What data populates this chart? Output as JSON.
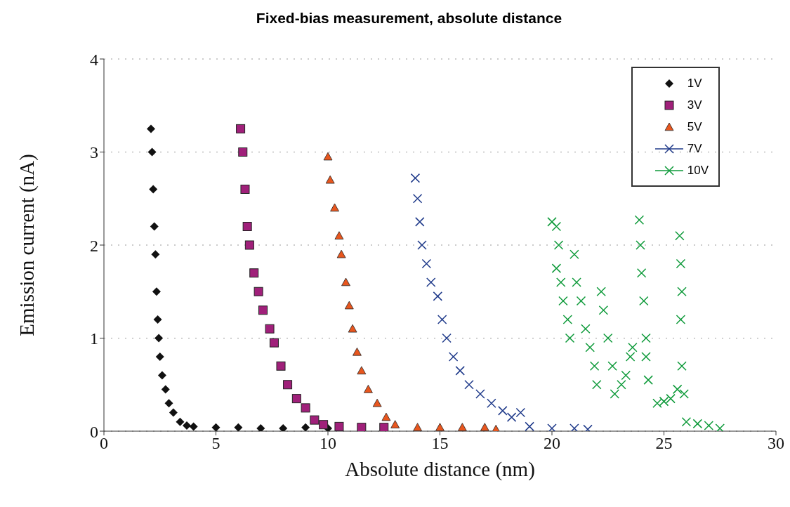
{
  "chart_data": {
    "type": "scatter",
    "title": "Fixed-bias measurement, absolute distance",
    "xlabel": "Absolute distance (nm)",
    "ylabel": "Emission current (nA)",
    "xlim": [
      0,
      30
    ],
    "xticks": [
      0,
      5,
      10,
      15,
      20,
      25,
      30
    ],
    "ylim": [
      0,
      4
    ],
    "yticks": [
      0,
      1,
      2,
      3,
      4
    ],
    "grid": "y",
    "legend": "top right",
    "series": [
      {
        "name": "1V",
        "color": "#111111",
        "marker": "diamond",
        "x": [
          2.1,
          2.15,
          2.2,
          2.25,
          2.3,
          2.35,
          2.4,
          2.45,
          2.5,
          2.6,
          2.75,
          2.9,
          3.1,
          3.4,
          3.7,
          4,
          5,
          6,
          7,
          8,
          9,
          10
        ],
        "values": [
          3.25,
          3.0,
          2.6,
          2.2,
          1.9,
          1.5,
          1.2,
          1.0,
          0.8,
          0.6,
          0.45,
          0.3,
          0.2,
          0.1,
          0.06,
          0.05,
          0.04,
          0.04,
          0.03,
          0.03,
          0.04,
          0.03
        ]
      },
      {
        "name": "3V",
        "color": "#a0207a",
        "marker": "square",
        "x": [
          6.1,
          6.2,
          6.3,
          6.4,
          6.5,
          6.7,
          6.9,
          7.1,
          7.4,
          7.6,
          7.9,
          8.2,
          8.6,
          9.0,
          9.4,
          9.8,
          10.5,
          11.5,
          12.5
        ],
        "values": [
          3.25,
          3.0,
          2.6,
          2.2,
          2.0,
          1.7,
          1.5,
          1.3,
          1.1,
          0.95,
          0.7,
          0.5,
          0.35,
          0.25,
          0.12,
          0.07,
          0.05,
          0.04,
          0.04
        ]
      },
      {
        "name": "5V",
        "color": "#e8561e",
        "marker": "triangle",
        "x": [
          10.0,
          10.1,
          10.3,
          10.5,
          10.6,
          10.8,
          10.95,
          11.1,
          11.3,
          11.5,
          11.8,
          12.2,
          12.6,
          13,
          14,
          15,
          16,
          17,
          17.5
        ],
        "values": [
          2.95,
          2.7,
          2.4,
          2.1,
          1.9,
          1.6,
          1.35,
          1.1,
          0.85,
          0.65,
          0.45,
          0.3,
          0.15,
          0.07,
          0.04,
          0.04,
          0.04,
          0.04,
          0.02
        ]
      },
      {
        "name": "7V",
        "color": "#1f3a8a",
        "marker": "cross",
        "x": [
          13.9,
          14.0,
          14.1,
          14.2,
          14.4,
          14.6,
          14.9,
          15.1,
          15.3,
          15.6,
          15.9,
          16.3,
          16.8,
          17.3,
          17.8,
          18.2,
          18.6,
          19.0,
          20,
          21,
          21.6
        ],
        "values": [
          2.72,
          2.5,
          2.25,
          2.0,
          1.8,
          1.6,
          1.45,
          1.2,
          1.0,
          0.8,
          0.65,
          0.5,
          0.4,
          0.3,
          0.22,
          0.15,
          0.2,
          0.05,
          0.03,
          0.03,
          0.02
        ]
      },
      {
        "name": "10V",
        "color": "#0e9a3a",
        "marker": "cross",
        "x": [
          20.0,
          20.2,
          20.3,
          20.2,
          20.4,
          20.5,
          20.7,
          20.8,
          21.0,
          21.1,
          21.3,
          21.5,
          21.7,
          21.9,
          22.0,
          22.2,
          22.3,
          22.5,
          22.7,
          22.8,
          23.1,
          23.3,
          23.5,
          23.6,
          23.9,
          23.95,
          24.0,
          24.1,
          24.2,
          24.2,
          24.3,
          24.7,
          25.0,
          25.3,
          25.6,
          25.7,
          25.75,
          25.8,
          25.75,
          25.8,
          25.9,
          26.0,
          26.5,
          27.0,
          27.5
        ],
        "values": [
          2.25,
          2.2,
          2.0,
          1.75,
          1.6,
          1.4,
          1.2,
          1.0,
          1.9,
          1.6,
          1.4,
          1.1,
          0.9,
          0.7,
          0.5,
          1.5,
          1.3,
          1.0,
          0.7,
          0.4,
          0.5,
          0.6,
          0.8,
          0.9,
          2.27,
          2.0,
          1.7,
          1.4,
          1.0,
          0.8,
          0.55,
          0.3,
          0.32,
          0.35,
          0.45,
          2.1,
          1.8,
          1.5,
          1.2,
          0.7,
          0.4,
          0.1,
          0.08,
          0.06,
          0.03
        ]
      }
    ]
  }
}
